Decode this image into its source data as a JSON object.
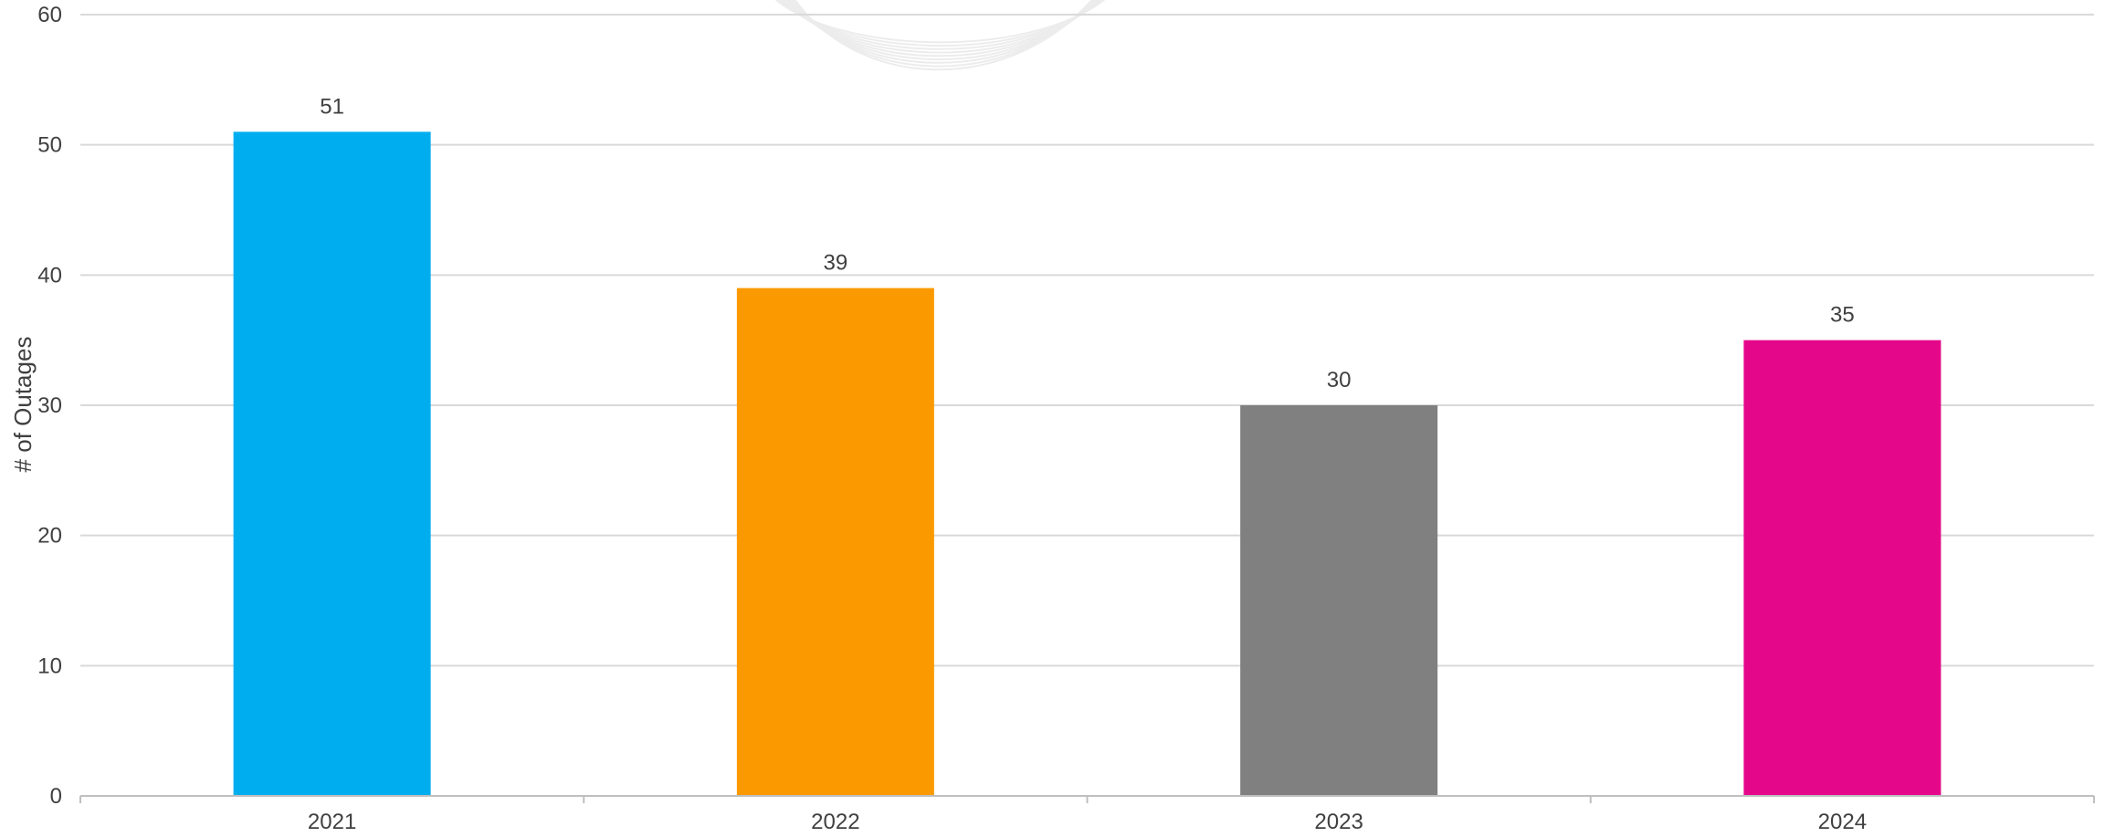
{
  "chart_data": {
    "type": "bar",
    "categories": [
      "2021",
      "2022",
      "2023",
      "2024"
    ],
    "values": [
      51,
      39,
      30,
      35
    ],
    "data_labels": [
      "51",
      "39",
      "30",
      "35"
    ],
    "bar_colors": [
      "#00AEEF",
      "#FB9A00",
      "#808080",
      "#E5078A"
    ],
    "title": "",
    "xlabel": "",
    "ylabel": "# of Outages",
    "ylim": [
      0,
      60
    ],
    "y_ticks": [
      "0",
      "10",
      "20",
      "30",
      "40",
      "50",
      "60"
    ],
    "grid": true,
    "legend": "none"
  },
  "colors": {
    "gridline": "#d9d9d9",
    "axis": "#bfbfbf",
    "text": "#404040",
    "background_swirl": "#ececec"
  }
}
